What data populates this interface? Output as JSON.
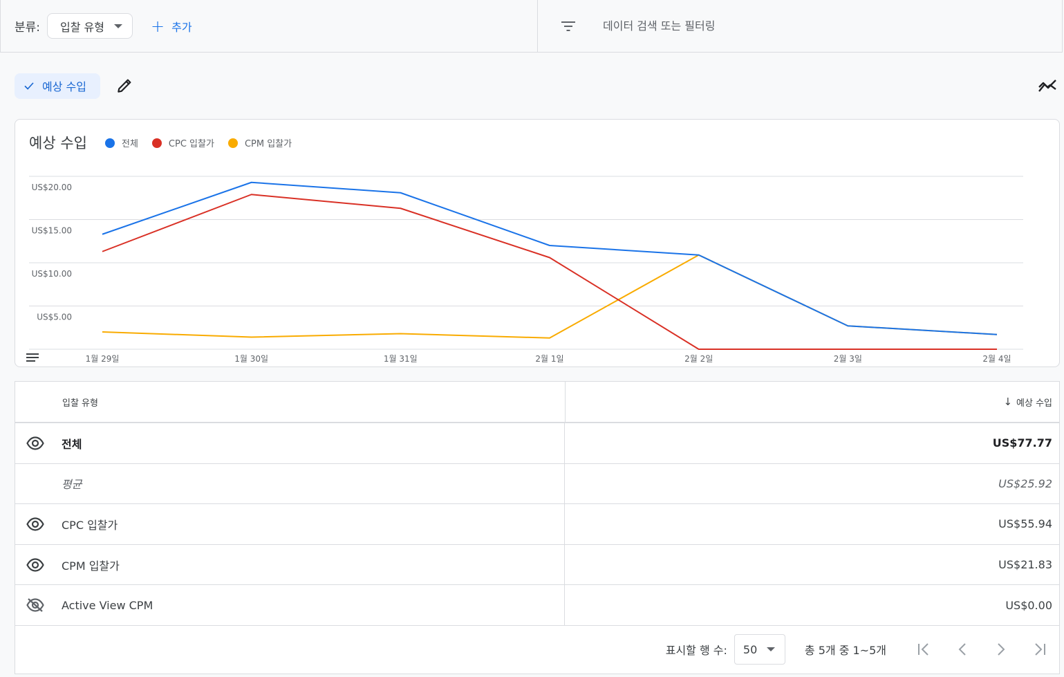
{
  "toolbar": {
    "group_label": "분류:",
    "group_value": "입찰 유형",
    "add_label": "추가",
    "search_placeholder": "데이터 검색 또는 필터링"
  },
  "metric_chip": {
    "label": "예상 수입"
  },
  "chart": {
    "title": "예상 수입",
    "legend": [
      {
        "name": "전체",
        "color": "#1a73e8"
      },
      {
        "name": "CPC 입찰가",
        "color": "#d93025"
      },
      {
        "name": "CPM 입찰가",
        "color": "#f9ab00"
      }
    ]
  },
  "chart_data": {
    "type": "line",
    "title": "예상 수입",
    "categories": [
      "1월 29일",
      "1월 30일",
      "1월 31일",
      "2월 1일",
      "2월 2일",
      "2월 3일",
      "2월 4일"
    ],
    "y_ticks": [
      "US$5.00",
      "US$10.00",
      "US$15.00",
      "US$20.00"
    ],
    "ylim": [
      0,
      20
    ],
    "grid": true,
    "legend_position": "top-left",
    "series": [
      {
        "name": "전체",
        "color": "#1a73e8",
        "values": [
          13.3,
          19.3,
          18.1,
          12.0,
          10.9,
          2.7,
          1.7
        ]
      },
      {
        "name": "CPC 입찰가",
        "color": "#d93025",
        "values": [
          11.3,
          17.9,
          16.3,
          10.6,
          0.0,
          0.0,
          0.0
        ]
      },
      {
        "name": "CPM 입찰가",
        "color": "#f9ab00",
        "values": [
          2.0,
          1.4,
          1.8,
          1.3,
          10.9,
          2.7,
          1.7
        ]
      }
    ]
  },
  "table": {
    "col_type": "입찰 유형",
    "col_revenue": "예상 수입",
    "rows": [
      {
        "label": "전체",
        "value": "US$77.77"
      },
      {
        "label": "평균",
        "value": "US$25.92"
      },
      {
        "label": "CPC 입찰가",
        "value": "US$55.94"
      },
      {
        "label": "CPM 입찰가",
        "value": "US$21.83"
      },
      {
        "label": "Active View CPM",
        "value": "US$0.00"
      }
    ]
  },
  "pagination": {
    "rows_label": "표시할 행 수:",
    "rows_value": "50",
    "range_text": "총 5개 중 1~5개"
  },
  "colors": {
    "accent": "#1a73e8",
    "chip_bg": "#e8f0fe"
  }
}
